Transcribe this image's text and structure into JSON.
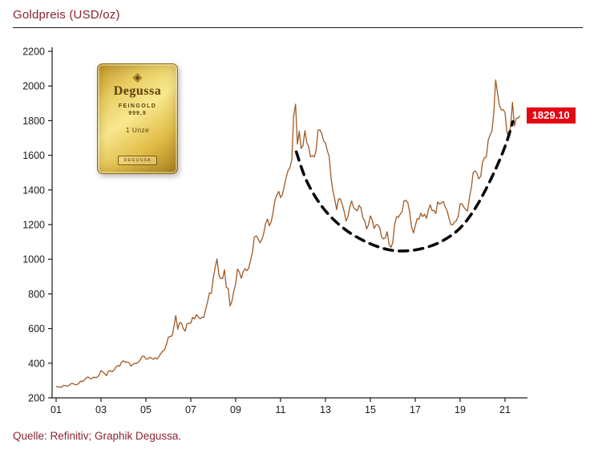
{
  "colors": {
    "title_maroon": "#8b2332",
    "line_brown": "#a05a24",
    "badge_red": "#e30613",
    "axis_black": "#1a1a1a",
    "annotation_black": "#0b0b0b"
  },
  "gold_bar": {
    "logo": "diamond",
    "brand": "Degussa",
    "line1": "FEINGOLD",
    "line2": "999,9",
    "weight": "1 Unze",
    "stamp": "DEGUSSA"
  },
  "chart_data": {
    "type": "line",
    "title": "Goldpreis (USD/oz)",
    "xlabel": "",
    "ylabel": "",
    "ylim": [
      200,
      2200
    ],
    "ytick_step": 200,
    "grid": false,
    "legend": false,
    "xtick_labels": [
      "01",
      "03",
      "05",
      "07",
      "09",
      "11",
      "13",
      "15",
      "17",
      "19",
      "21"
    ],
    "xtick_years": [
      2001,
      2003,
      2005,
      2007,
      2009,
      2011,
      2013,
      2015,
      2017,
      2019,
      2021
    ],
    "x_range_years": [
      2001,
      2021.75
    ],
    "last_value_label": "1829.10",
    "series": [
      {
        "name": "Goldpreis USD/oz (monatlich)",
        "color": "#a05a24",
        "start_year": 2001,
        "points_per_year": 12,
        "values": [
          266,
          262,
          263,
          261,
          272,
          270,
          267,
          272,
          283,
          283,
          276,
          276,
          282,
          296,
          294,
          302,
          314,
          321,
          313,
          310,
          319,
          317,
          319,
          333,
          357,
          349,
          340,
          328,
          355,
          356,
          351,
          360,
          379,
          386,
          383,
          407,
          414,
          405,
          407,
          403,
          384,
          392,
          398,
          400,
          405,
          420,
          439,
          442,
          424,
          424,
          434,
          429,
          422,
          431,
          424,
          438,
          456,
          470,
          477,
          510,
          550,
          555,
          557,
          611,
          675,
          596,
          634,
          632,
          599,
          585,
          627,
          629,
          631,
          665,
          655,
          680,
          667,
          656,
          665,
          665,
          713,
          755,
          806,
          803,
          890,
          950,
          1002,
          910,
          889,
          889,
          940,
          839,
          830,
          730,
          757,
          816,
          858,
          943,
          924,
          890,
          928,
          946,
          934,
          949,
          996,
          1043,
          1127,
          1135,
          1118,
          1095,
          1113,
          1149,
          1205,
          1232,
          1193,
          1216,
          1271,
          1342,
          1370,
          1391,
          1356,
          1373,
          1424,
          1473,
          1511,
          1529,
          1573,
          1826,
          1895,
          1665,
          1739,
          1640,
          1656,
          1742,
          1674,
          1651,
          1591,
          1598,
          1590,
          1626,
          1745,
          1747,
          1726,
          1684,
          1671,
          1627,
          1593,
          1469,
          1394,
          1343,
          1286,
          1347,
          1348,
          1316,
          1276,
          1221,
          1244,
          1300,
          1336,
          1299,
          1288,
          1279,
          1311,
          1296,
          1238,
          1222,
          1175,
          1199,
          1250,
          1227,
          1178,
          1198,
          1199,
          1181,
          1130,
          1117,
          1124,
          1159,
          1086,
          1068,
          1097,
          1199,
          1246,
          1242,
          1260,
          1276,
          1337,
          1340,
          1327,
          1272,
          1189,
          1152,
          1192,
          1234,
          1231,
          1266,
          1246,
          1260,
          1236,
          1283,
          1315,
          1280,
          1282,
          1264,
          1331,
          1318,
          1325,
          1334,
          1303,
          1281,
          1238,
          1201,
          1198,
          1215,
          1222,
          1250,
          1320,
          1320,
          1300,
          1286,
          1279,
          1359,
          1413,
          1500,
          1511,
          1495,
          1464,
          1479,
          1561,
          1585,
          1591,
          1686,
          1716,
          1741,
          1843,
          2035,
          1957,
          1887,
          1863,
          1864,
          1847,
          1734,
          1707,
          1769,
          1906,
          1770,
          1814,
          1814,
          1829.1
        ]
      }
    ],
    "annotation": {
      "name": "rounded-bottom dashed curve",
      "style": "dashed",
      "color": "#0b0b0b",
      "points_year_value": [
        [
          2011.7,
          1620
        ],
        [
          2012.1,
          1470
        ],
        [
          2012.6,
          1350
        ],
        [
          2013.2,
          1250
        ],
        [
          2014.0,
          1160
        ],
        [
          2014.9,
          1095
        ],
        [
          2015.8,
          1055
        ],
        [
          2016.6,
          1048
        ],
        [
          2017.4,
          1065
        ],
        [
          2018.2,
          1105
        ],
        [
          2019.0,
          1180
        ],
        [
          2019.7,
          1300
        ],
        [
          2020.4,
          1470
        ],
        [
          2021.0,
          1650
        ],
        [
          2021.35,
          1795
        ]
      ]
    },
    "source": "Quelle: Refinitiv; Graphik Degussa."
  }
}
